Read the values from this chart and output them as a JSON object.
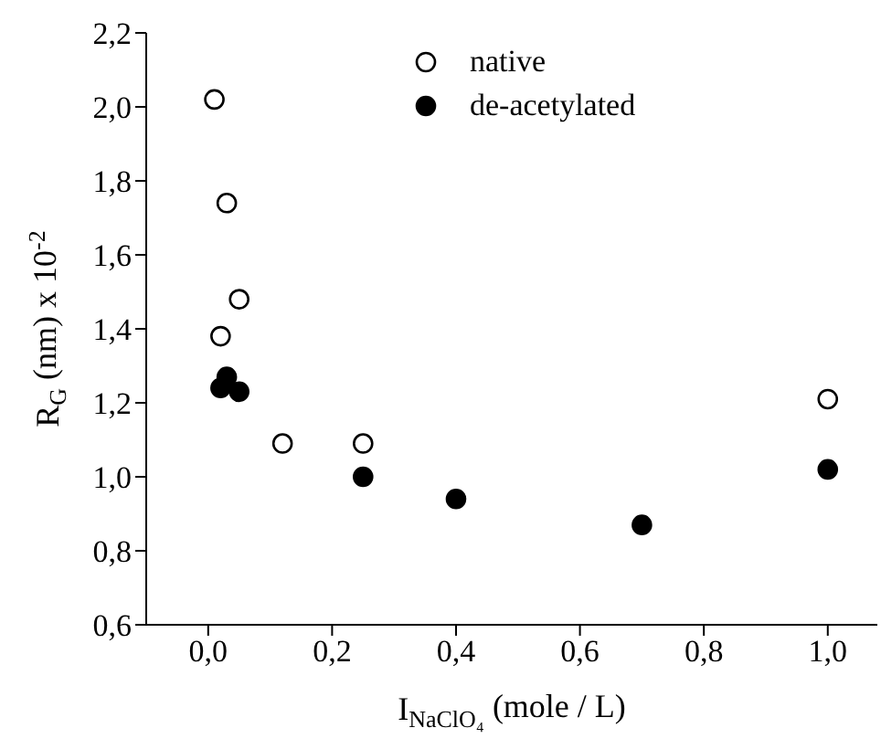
{
  "chart_data": {
    "type": "scatter",
    "xlabel": "I$_{NaClO₄}$ (mole / L)",
    "ylabel": "R$_{G}$ (nm) x 10$^{-2}$",
    "xlim": [
      -0.1,
      1.08
    ],
    "xticks": [
      {
        "value": 0,
        "label": "0,0"
      },
      {
        "value": 0.2,
        "label": "0,2"
      },
      {
        "value": 0.4,
        "label": "0,4"
      },
      {
        "value": 0.6,
        "label": "0,6"
      },
      {
        "value": 0.8,
        "label": "0,8"
      },
      {
        "value": 1,
        "label": "1,0"
      }
    ],
    "ylim": [
      0.6,
      2.2
    ],
    "yticks": [
      {
        "value": 0.6,
        "label": "0,6"
      },
      {
        "value": 0.8,
        "label": "0,8"
      },
      {
        "value": 1,
        "label": "1,0"
      },
      {
        "value": 1.2,
        "label": "1,2"
      },
      {
        "value": 1.4,
        "label": "1,4"
      },
      {
        "value": 1.6,
        "label": "1,6"
      },
      {
        "value": 1.8,
        "label": "1,8"
      },
      {
        "value": 2,
        "label": "2,0"
      },
      {
        "value": 2.2,
        "label": "2,2"
      }
    ],
    "marker": "circle",
    "legend": "top",
    "grid": false,
    "series": [
      {
        "name": "native",
        "color": "#ffffff",
        "x": [
          0.01,
          0.03,
          0.05,
          0.02,
          0.12,
          0.25,
          1.0
        ],
        "values": [
          2.02,
          1.74,
          1.48,
          1.38,
          1.09,
          1.09,
          1.21
        ]
      },
      {
        "name": "de-acetylated",
        "color": "#000000",
        "x": [
          0.02,
          0.03,
          0.05,
          0.25,
          0.4,
          0.7,
          1.0
        ],
        "values": [
          1.24,
          1.27,
          1.23,
          1.0,
          0.94,
          0.87,
          1.02
        ]
      }
    ]
  }
}
